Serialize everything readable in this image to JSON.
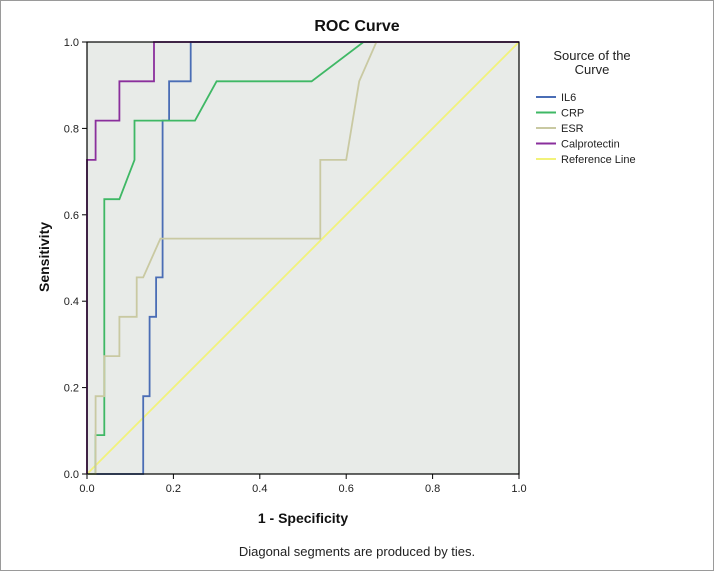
{
  "chart_data": {
    "type": "line",
    "title": "ROC Curve",
    "xlabel": "1 - Specificity",
    "ylabel": "Sensitivity",
    "xlim": [
      0,
      1
    ],
    "ylim": [
      0,
      1
    ],
    "xticks": [
      "0.0",
      "0.2",
      "0.4",
      "0.6",
      "0.8",
      "1.0"
    ],
    "yticks": [
      "0.0",
      "0.2",
      "0.4",
      "0.6",
      "0.8",
      "1.0"
    ],
    "footnote": "Diagonal segments are produced by ties.",
    "legend": {
      "title": "Source of the Curve",
      "placement": "right"
    },
    "plot_background": "#e8ebe8",
    "series": [
      {
        "name": "IL6",
        "color": "#4a6db5",
        "x": [
          0,
          0.13,
          0.13,
          0.145,
          0.145,
          0.16,
          0.16,
          0.175,
          0.175,
          0.19,
          0.19,
          0.21,
          0.21,
          0.24,
          0.24,
          1.0
        ],
        "y": [
          0,
          0,
          0.18,
          0.18,
          0.364,
          0.364,
          0.455,
          0.455,
          0.818,
          0.818,
          0.909,
          0.909,
          0.909,
          0.909,
          1.0,
          1.0
        ]
      },
      {
        "name": "CRP",
        "color": "#3fb865",
        "x": [
          0,
          0.02,
          0.02,
          0.04,
          0.04,
          0.075,
          0.11,
          0.11,
          0.19,
          0.25,
          0.3,
          0.52,
          0.64,
          0.67,
          1.0
        ],
        "y": [
          0,
          0,
          0.09,
          0.09,
          0.636,
          0.636,
          0.727,
          0.818,
          0.818,
          0.818,
          0.909,
          0.909,
          1.0,
          1.0,
          1.0
        ]
      },
      {
        "name": "ESR",
        "color": "#c9c9a2",
        "x": [
          0,
          0.02,
          0.02,
          0.04,
          0.04,
          0.075,
          0.075,
          0.115,
          0.115,
          0.13,
          0.17,
          0.54,
          0.54,
          0.6,
          0.63,
          0.67,
          1.0
        ],
        "y": [
          0,
          0,
          0.18,
          0.18,
          0.273,
          0.273,
          0.364,
          0.364,
          0.455,
          0.455,
          0.545,
          0.545,
          0.727,
          0.727,
          0.909,
          1.0,
          1.0
        ]
      },
      {
        "name": "Calprotectin",
        "color": "#8a2f9c",
        "x": [
          0,
          0.0,
          0.02,
          0.02,
          0.075,
          0.075,
          0.155,
          0.155,
          1.0
        ],
        "y": [
          0,
          0.727,
          0.727,
          0.818,
          0.818,
          0.909,
          0.909,
          1.0,
          1.0
        ]
      },
      {
        "name": "Reference Line",
        "color": "#f2f27a",
        "x": [
          0,
          1
        ],
        "y": [
          0,
          1
        ]
      }
    ]
  }
}
